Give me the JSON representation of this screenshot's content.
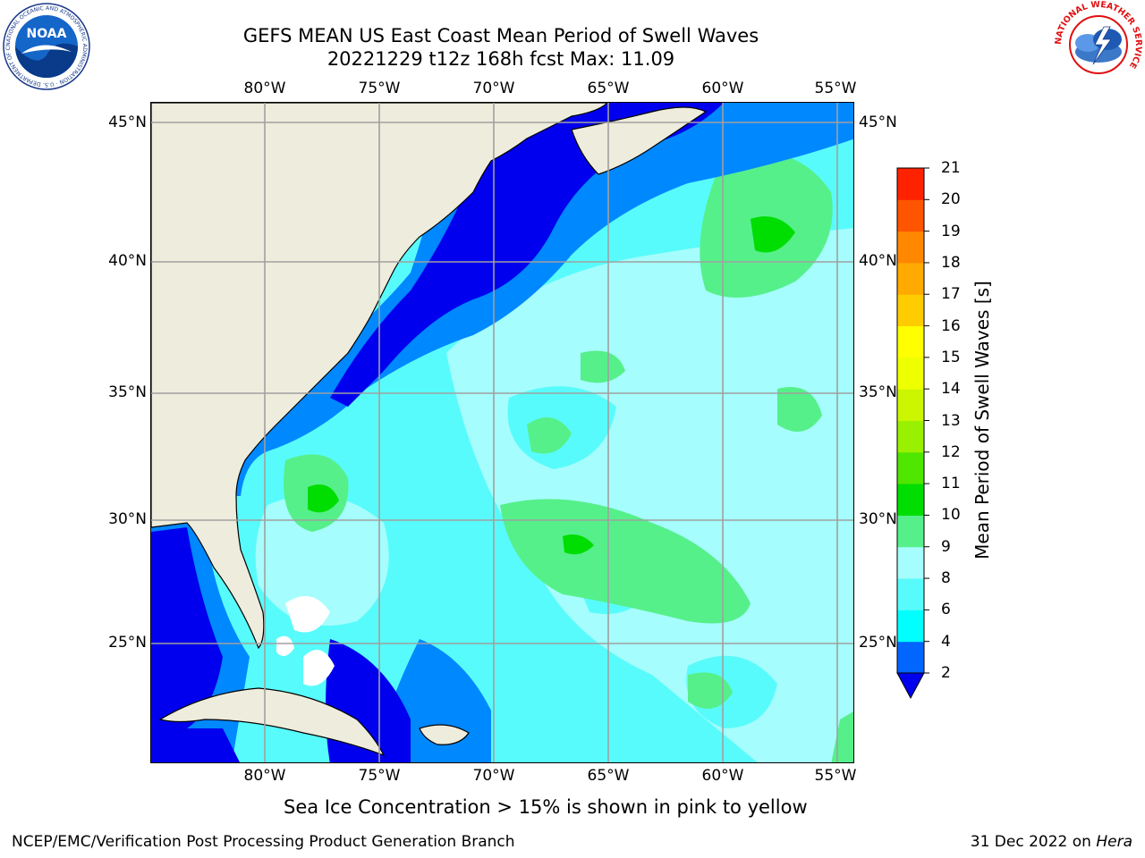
{
  "title": {
    "line1": "GEFS MEAN US East Coast Mean Period of Swell Waves",
    "line2": "20221229 t12z 168h fcst   Max: 11.09"
  },
  "map": {
    "lon_labels": [
      "80°W",
      "75°W",
      "70°W",
      "65°W",
      "60°W",
      "55°W"
    ],
    "lat_labels": [
      "45°N",
      "40°N",
      "35°N",
      "30°N",
      "25°N"
    ],
    "extent": {
      "lon_min": -85,
      "lon_max": -54.6,
      "lat_min": 20.3,
      "lat_max": 46
    },
    "land_color": "#eeecdc",
    "ocean_base_color": "#58fbfb"
  },
  "colorbar": {
    "label": "Mean Period of Swell Waves [s]",
    "ticks": [
      "2",
      "4",
      "6",
      "8",
      "9",
      "10",
      "11",
      "12",
      "13",
      "14",
      "15",
      "16",
      "17",
      "18",
      "19",
      "20",
      "21"
    ],
    "colors": [
      "#0066ff",
      "#00ffff",
      "#58fbfb",
      "#a6fdfd",
      "#55f08a",
      "#00dd00",
      "#4fe600",
      "#99f000",
      "#ccf500",
      "#eeff00",
      "#ffff00",
      "#ffcc00",
      "#ffaa00",
      "#ff8800",
      "#ff5500",
      "#ff2200"
    ],
    "extend_color": "#0000ee"
  },
  "note": "Sea Ice Concentration > 15% is shown in pink to yellow",
  "footer": {
    "left": "NCEP/EMC/Verification Post Processing Product Generation Branch",
    "date": "31 Dec 2022 on",
    "machine": "Hera"
  },
  "logos": {
    "noaa_text": "NOAA",
    "noaa_ring": "NATIONAL OCEANIC AND ATMOSPHERIC ADMINISTRATION · U.S. DEPARTMENT OF COMMERCE",
    "nws_ring": "NATIONAL WEATHER SERVICE"
  }
}
